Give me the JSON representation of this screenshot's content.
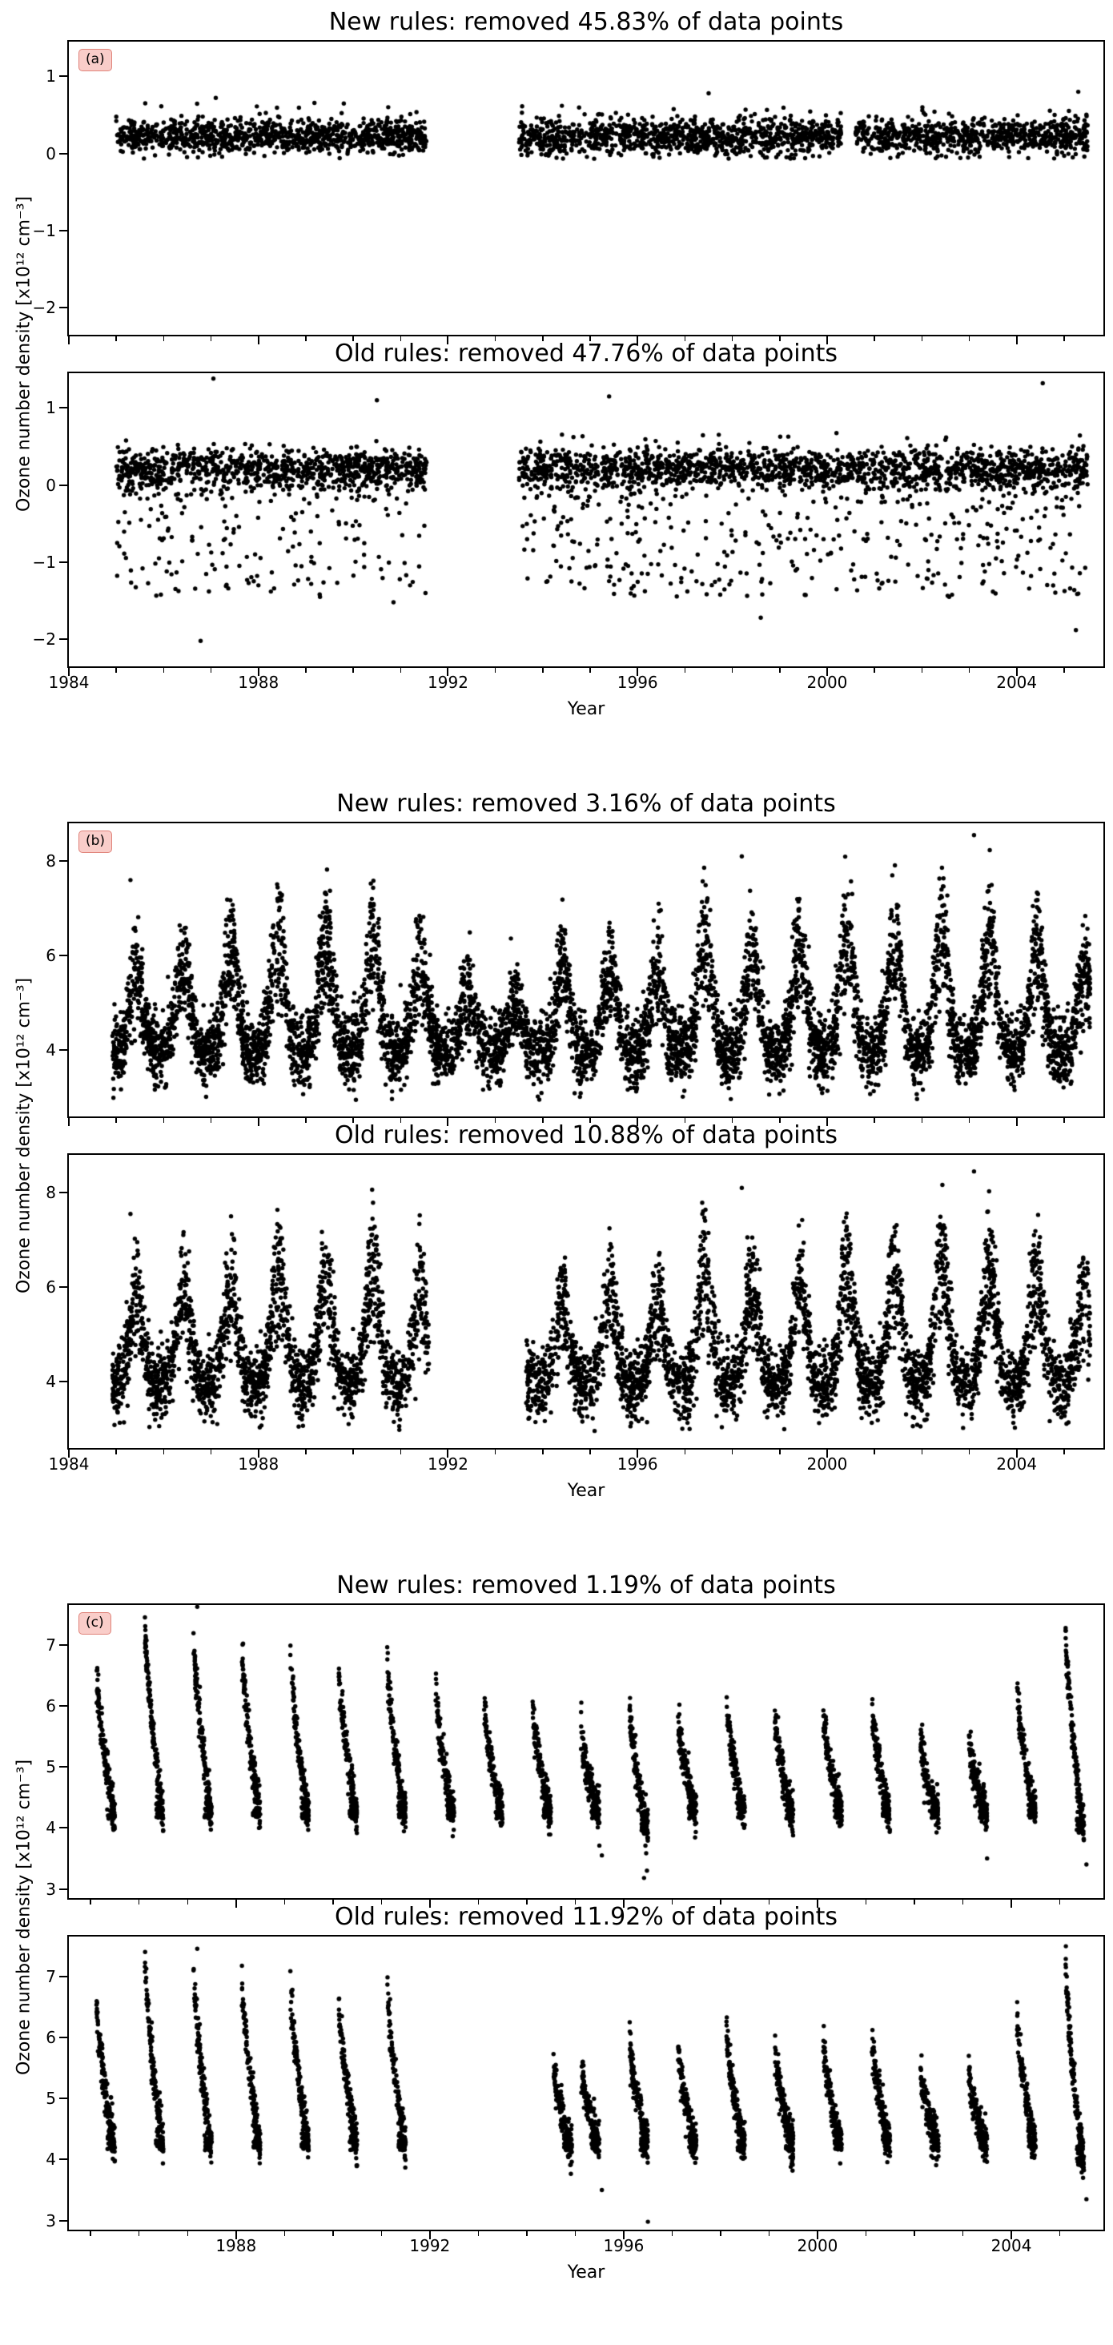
{
  "chart_data": {
    "type": "scatter",
    "seed": 42,
    "colors": {
      "point": "#000000",
      "background": "#ffffff",
      "panel_label_bg": "#f9cdc9",
      "panel_label_border": "#e0837a"
    },
    "figures": [
      {
        "panel_label": "(a)",
        "xlabel": "Year",
        "ylabel": "Ozone number density [x10¹² cm⁻³]",
        "xlim": [
          1984,
          2005.83
        ],
        "xticks": [
          1984,
          1988,
          1992,
          1996,
          2000,
          2004
        ],
        "subplots": [
          {
            "title": "New rules: removed 45.83% of data points",
            "ylim": [
              -2.35,
              1.45
            ],
            "yticks": [
              1,
              0,
              -1,
              -2
            ],
            "pattern": {
              "kind": "flat",
              "base": 0.22,
              "noise": 0.11,
              "n_per_year": 160,
              "clamp_lo": -0.07,
              "clamp_hi": 0.66
            },
            "segments": [
              [
                1985.0,
                1991.55
              ],
              [
                1993.5,
                2000.3
              ],
              [
                2000.6,
                2005.5
              ]
            ],
            "outliers": [
              [
                1987.1,
                0.72
              ],
              [
                1997.5,
                0.78
              ],
              [
                2005.3,
                0.8
              ]
            ]
          },
          {
            "title": "Old rules: removed 47.76% of data points",
            "ylim": [
              -2.35,
              1.45
            ],
            "yticks": [
              1,
              0,
              -1,
              -2
            ],
            "pattern": {
              "kind": "flat_tail",
              "base": 0.22,
              "noise": 0.12,
              "n_per_year": 170,
              "clamp_lo": -0.07,
              "clamp_hi": 0.7,
              "tail_frac": 0.22,
              "tail_top": 0.1,
              "tail_bottom": -1.45
            },
            "segments": [
              [
                1985.0,
                1991.55
              ],
              [
                1993.5,
                2005.5
              ]
            ],
            "outliers": [
              [
                1986.78,
                -2.02
              ],
              [
                1987.05,
                1.38
              ],
              [
                1990.5,
                1.1
              ],
              [
                1990.85,
                -1.52
              ],
              [
                1991.2,
                -1.3
              ],
              [
                1995.4,
                1.15
              ],
              [
                1995.1,
                -1.05
              ],
              [
                1998.6,
                -1.72
              ],
              [
                2000.2,
                -1.35
              ],
              [
                2004.55,
                1.32
              ],
              [
                2005.25,
                -1.88
              ],
              [
                2003.3,
                -1.25
              ],
              [
                1989.3,
                -1.45
              ],
              [
                1988.0,
                -1.3
              ]
            ]
          }
        ]
      },
      {
        "panel_label": "(b)",
        "xlabel": "Year",
        "ylabel": "Ozone number density [x10¹² cm⁻³]",
        "xlim": [
          1984,
          2005.83
        ],
        "xticks": [
          1984,
          1988,
          1992,
          1996,
          2000,
          2004
        ],
        "subplots": [
          {
            "title": "New rules: removed 3.16% of data points",
            "ylim": [
              2.6,
              8.8
            ],
            "yticks": [
              8,
              6,
              4
            ],
            "pattern": {
              "kind": "seasonal",
              "base": 3.95,
              "noise": 0.38,
              "amp": 3.1,
              "peak_frac": 0.42,
              "peak_width": 0.14,
              "floor": 2.95,
              "n_per_year": 330,
              "dip_years": [
                1992,
                1993
              ]
            },
            "segments": [
              [
                1984.92,
                2005.55
              ]
            ],
            "outliers": [
              [
                2003.1,
                8.55
              ],
              [
                1998.2,
                8.1
              ],
              [
                1985.3,
                7.6
              ]
            ]
          },
          {
            "title": "Old rules: removed 10.88% of data points",
            "ylim": [
              2.6,
              8.8
            ],
            "yticks": [
              8,
              6,
              4
            ],
            "pattern": {
              "kind": "seasonal",
              "base": 3.95,
              "noise": 0.38,
              "amp": 3.1,
              "peak_frac": 0.42,
              "peak_width": 0.14,
              "floor": 2.95,
              "n_per_year": 300,
              "dip_years": [
                1992,
                1993
              ]
            },
            "segments": [
              [
                1984.92,
                1991.6
              ],
              [
                1993.65,
                2005.55
              ]
            ],
            "outliers": [
              [
                2003.1,
                8.45
              ],
              [
                1998.2,
                8.1
              ],
              [
                1985.3,
                7.55
              ]
            ]
          }
        ]
      },
      {
        "panel_label": "(c)",
        "xlabel": "Year",
        "ylabel": "Ozone number density [x10¹² cm⁻³]",
        "xlim": [
          1984.55,
          2005.9
        ],
        "xticks": [
          1988,
          1992,
          1996,
          2000,
          2004
        ],
        "subplots": [
          {
            "title": "New rules: removed 1.19% of data points",
            "ylim": [
              2.85,
              7.65
            ],
            "yticks": [
              7,
              6,
              5,
              4,
              3
            ],
            "pattern": {
              "kind": "streaks",
              "offset": 0.12,
              "duration": 0.38,
              "bottom": 4.15,
              "n_per_cluster": 170,
              "noise": 0.17
            },
            "clusters": [
              {
                "year": 1985,
                "top": 6.55
              },
              {
                "year": 1986,
                "top": 7.35
              },
              {
                "year": 1987,
                "top": 7.2
              },
              {
                "year": 1988,
                "top": 7.0
              },
              {
                "year": 1989,
                "top": 6.95
              },
              {
                "year": 1990,
                "top": 6.6
              },
              {
                "year": 1991,
                "top": 6.75
              },
              {
                "year": 1992,
                "top": 6.3
              },
              {
                "year": 1993,
                "top": 6.1
              },
              {
                "year": 1994,
                "top": 6.0
              },
              {
                "year": 1995,
                "top": 5.65
              },
              {
                "year": 1996,
                "top": 6.0,
                "bottom": 3.9
              },
              {
                "year": 1997,
                "top": 5.85
              },
              {
                "year": 1998,
                "top": 6.1
              },
              {
                "year": 1999,
                "top": 5.85
              },
              {
                "year": 2000,
                "top": 5.9
              },
              {
                "year": 2001,
                "top": 6.05
              },
              {
                "year": 2002,
                "top": 5.5
              },
              {
                "year": 2003,
                "top": 5.45
              },
              {
                "year": 2004,
                "top": 6.3
              },
              {
                "year": 2005,
                "top": 7.25,
                "bottom": 3.9
              }
            ],
            "outliers": [
              [
                1987.2,
                7.62
              ],
              [
                1996.42,
                3.18
              ],
              [
                1996.48,
                3.3
              ],
              [
                2005.55,
                3.4
              ],
              [
                1995.55,
                3.55
              ]
            ]
          },
          {
            "title": "Old rules: removed 11.92% of data points",
            "ylim": [
              2.85,
              7.65
            ],
            "yticks": [
              7,
              6,
              5,
              4,
              3
            ],
            "pattern": {
              "kind": "streaks",
              "offset": 0.12,
              "duration": 0.38,
              "bottom": 4.15,
              "n_per_cluster": 170,
              "noise": 0.17
            },
            "clusters": [
              {
                "year": 1985,
                "top": 6.55
              },
              {
                "year": 1986,
                "top": 7.35
              },
              {
                "year": 1987,
                "top": 7.2
              },
              {
                "year": 1988,
                "top": 7.0
              },
              {
                "year": 1989,
                "top": 6.9
              },
              {
                "year": 1990,
                "top": 6.6
              },
              {
                "year": 1991,
                "top": 6.9
              },
              {
                "year": 1994,
                "top": 5.6,
                "offset": 0.55
              },
              {
                "year": 1995,
                "top": 5.65
              },
              {
                "year": 1996,
                "top": 6.0
              },
              {
                "year": 1997,
                "top": 5.85
              },
              {
                "year": 1998,
                "top": 6.1
              },
              {
                "year": 1999,
                "top": 5.85
              },
              {
                "year": 2000,
                "top": 5.9
              },
              {
                "year": 2001,
                "top": 6.05
              },
              {
                "year": 2002,
                "top": 5.5
              },
              {
                "year": 2003,
                "top": 5.45
              },
              {
                "year": 2004,
                "top": 6.3
              },
              {
                "year": 2005,
                "top": 7.25,
                "bottom": 3.9
              }
            ],
            "outliers": [
              [
                1996.5,
                2.98
              ],
              [
                2005.55,
                3.35
              ],
              [
                1995.55,
                3.5
              ],
              [
                1987.2,
                7.45
              ]
            ]
          }
        ]
      }
    ]
  }
}
